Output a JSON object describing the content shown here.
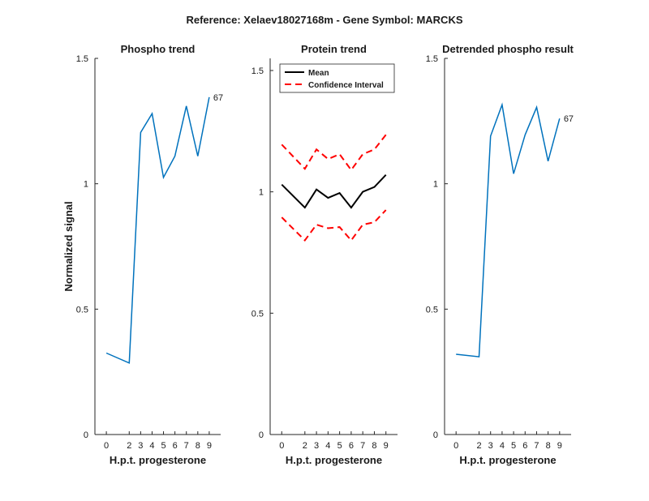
{
  "figure_title": "Reference:  Xelaev18027168m - Gene Symbol:  MARCKS",
  "colors": {
    "phospho": "#0072BD",
    "mean": "#000000",
    "ci": "#FF0000",
    "axis": "#262626"
  },
  "chart_data": [
    {
      "type": "line",
      "title": "Phospho trend",
      "xlabel": "H.p.t. progesterone",
      "ylabel": "Normalized signal",
      "x": [
        0,
        2,
        3,
        4,
        5,
        6,
        7,
        8,
        9
      ],
      "xticks": [
        "0",
        "2",
        "3",
        "4",
        "5",
        "6",
        "7",
        "8",
        "9"
      ],
      "ylim": [
        0,
        1.5
      ],
      "yticks": [
        "0",
        "0.5",
        "1",
        "1.5"
      ],
      "series": [
        {
          "values": [
            0.325,
            0.285,
            1.205,
            1.28,
            1.025,
            1.11,
            1.31,
            1.11,
            1.345
          ],
          "color": "#0072BD"
        }
      ],
      "annotation": "67",
      "grid": false
    },
    {
      "type": "line",
      "title": "Protein trend",
      "xlabel": "H.p.t. progesterone",
      "ylabel": "",
      "x": [
        0,
        2,
        3,
        4,
        5,
        6,
        7,
        8,
        9
      ],
      "xticks": [
        "0",
        "2",
        "3",
        "4",
        "5",
        "6",
        "7",
        "8",
        "9"
      ],
      "ylim": [
        0,
        1.55
      ],
      "yticks": [
        "0",
        "0.5",
        "1",
        "1.5"
      ],
      "series": [
        {
          "name": "Mean",
          "values": [
            1.03,
            0.935,
            1.01,
            0.975,
            0.995,
            0.935,
            1.0,
            1.02,
            1.07
          ],
          "color": "#000000",
          "style": "solid"
        },
        {
          "name": "Confidence Interval",
          "values": [
            1.195,
            1.095,
            1.175,
            1.135,
            1.155,
            1.09,
            1.155,
            1.175,
            1.235
          ],
          "color": "#FF0000",
          "style": "dashed"
        },
        {
          "values": [
            0.895,
            0.8,
            0.865,
            0.85,
            0.855,
            0.8,
            0.865,
            0.875,
            0.925
          ],
          "color": "#FF0000",
          "style": "dashed"
        }
      ],
      "legend": {
        "entries": [
          "Mean",
          "Confidence Interval"
        ],
        "placement": "top-left"
      },
      "grid": false
    },
    {
      "type": "line",
      "title": "Detrended phospho result",
      "xlabel": "H.p.t. progesterone",
      "ylabel": "",
      "x": [
        0,
        2,
        3,
        4,
        5,
        6,
        7,
        8,
        9
      ],
      "xticks": [
        "0",
        "2",
        "3",
        "4",
        "5",
        "6",
        "7",
        "8",
        "9"
      ],
      "ylim": [
        0,
        1.5
      ],
      "yticks": [
        "0",
        "0.5",
        "1",
        "1.5"
      ],
      "series": [
        {
          "values": [
            0.32,
            0.31,
            1.19,
            1.315,
            1.04,
            1.195,
            1.305,
            1.09,
            1.26
          ],
          "color": "#0072BD"
        }
      ],
      "annotation": "67",
      "grid": false
    }
  ]
}
